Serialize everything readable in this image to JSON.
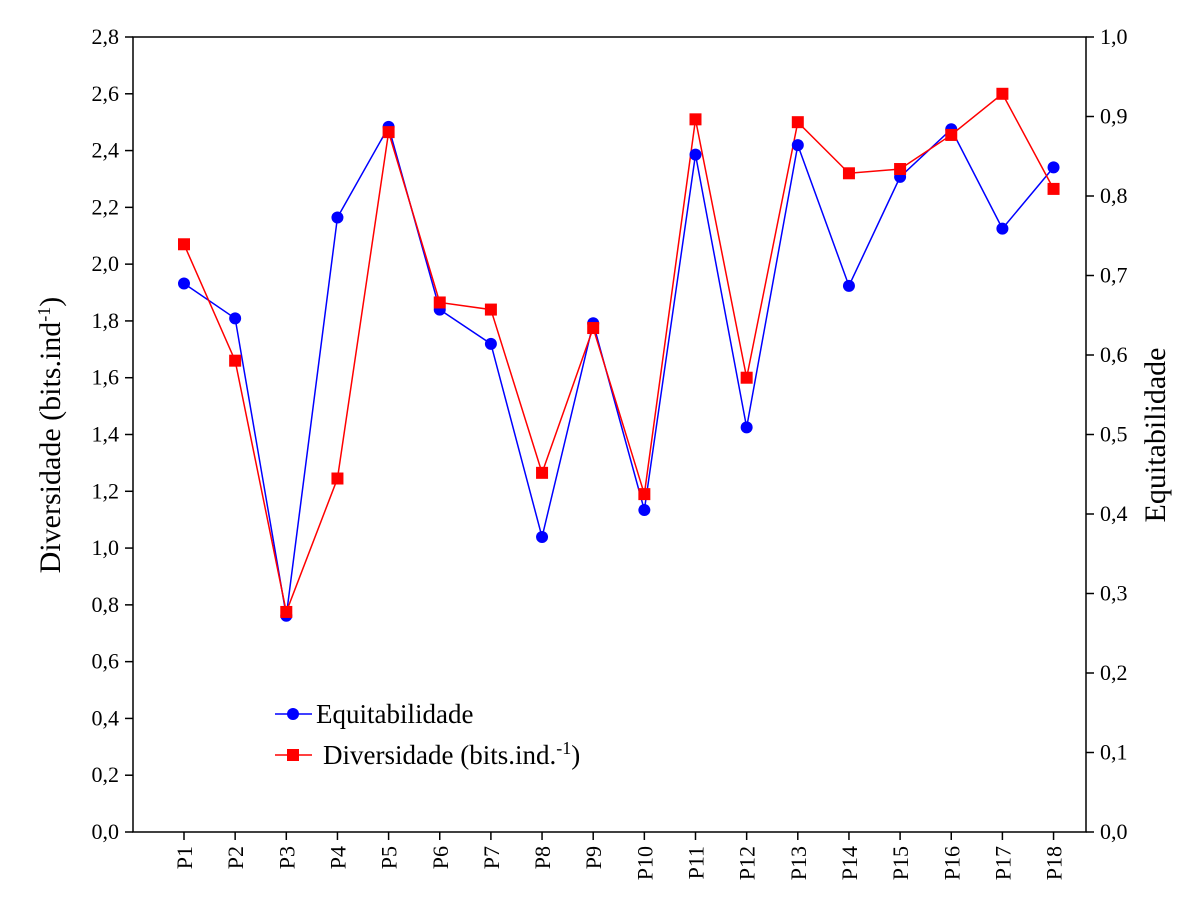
{
  "chart_data": {
    "type": "line",
    "categories": [
      "P1",
      "P2",
      "P3",
      "P4",
      "P5",
      "P6",
      "P7",
      "P8",
      "P9",
      "P10",
      "P11",
      "P12",
      "P13",
      "P14",
      "P15",
      "P16",
      "P17",
      "P18"
    ],
    "left_axis": {
      "label_main": "Diversidade (bits.ind",
      "label_sup": "-1",
      "label_close": ")",
      "range": [
        0,
        2.8
      ],
      "ticks": [
        "0,0",
        "0,2",
        "0,4",
        "0,6",
        "0,8",
        "1,0",
        "1,2",
        "1,4",
        "1,6",
        "1,8",
        "2,0",
        "2,2",
        "2,4",
        "2,6",
        "2,8"
      ]
    },
    "right_axis": {
      "label": "Equitabilidade",
      "range": [
        0,
        1.0
      ],
      "ticks": [
        "0,0",
        "0,1",
        "0,2",
        "0,3",
        "0,4",
        "0,5",
        "0,6",
        "0,7",
        "0,8",
        "0,9",
        "1,0"
      ]
    },
    "series": [
      {
        "name": "Equitabilidade",
        "axis": "right",
        "color": "#0000ff",
        "marker": "circle",
        "values": [
          0.69,
          0.646,
          0.272,
          0.773,
          0.887,
          0.657,
          0.614,
          0.371,
          0.64,
          0.405,
          0.852,
          0.509,
          0.864,
          0.687,
          0.824,
          0.884,
          0.759,
          0.836
        ]
      },
      {
        "name": "Diversidade (bits.ind.",
        "name_sup": "-1",
        "name_close": ")",
        "axis": "left",
        "color": "#ff0000",
        "marker": "square",
        "values": [
          2.07,
          1.66,
          0.775,
          1.245,
          2.465,
          1.865,
          1.84,
          1.265,
          1.775,
          1.19,
          2.51,
          1.6,
          2.5,
          2.32,
          2.335,
          2.455,
          2.6,
          2.265
        ]
      }
    ],
    "legend_position": "bottom-left",
    "grid": false
  }
}
